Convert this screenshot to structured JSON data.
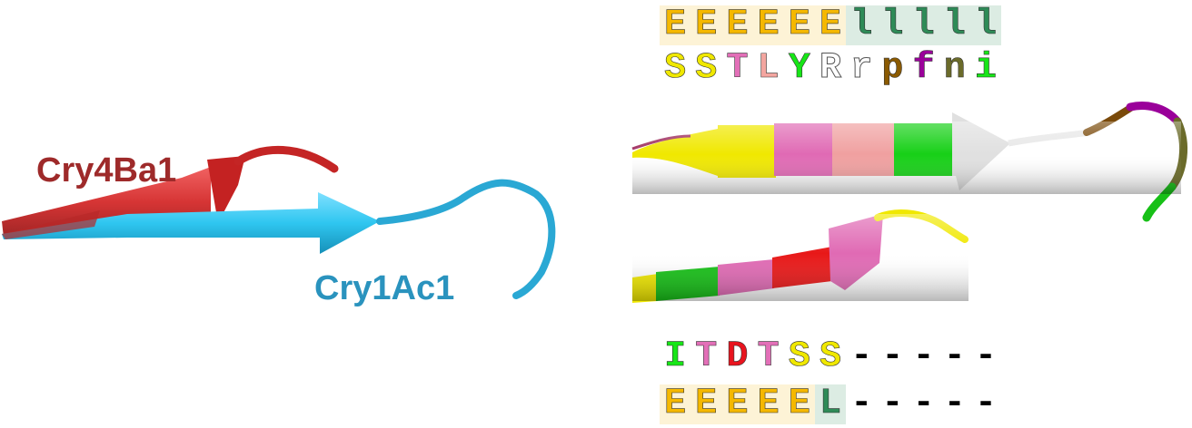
{
  "labels": {
    "cry4ba1": "Cry4Ba1",
    "cry1ac1": "Cry1Ac1"
  },
  "sequences": {
    "top_ss": {
      "chars": [
        "E",
        "E",
        "E",
        "E",
        "E",
        "E",
        "l",
        "l",
        "l",
        "l",
        "l"
      ],
      "colors": [
        "#f5b800",
        "#f5b800",
        "#f5b800",
        "#f5b800",
        "#f5b800",
        "#f5b800",
        "#2e8b57",
        "#2e8b57",
        "#2e8b57",
        "#2e8b57",
        "#2e8b57"
      ],
      "backgrounds": [
        {
          "from": 0,
          "to": 6,
          "color": "#fdf3d6"
        },
        {
          "from": 6,
          "to": 11,
          "color": "#dcece3"
        }
      ]
    },
    "top_aa": {
      "chars": [
        "S",
        "S",
        "T",
        "L",
        "Y",
        "R",
        "r",
        "p",
        "f",
        "n",
        "i"
      ],
      "colors": [
        "#f0e800",
        "#f0e800",
        "#e36fb8",
        "#f4a6a0",
        "#17e617",
        "#ffffff",
        "#ffffff",
        "#8b5a00",
        "#9b009b",
        "#6b6b2a",
        "#17e617"
      ]
    },
    "bottom_aa": {
      "chars": [
        "I",
        "T",
        "D",
        "T",
        "S",
        "S",
        "-",
        "-",
        "-",
        "-",
        "-"
      ],
      "colors": [
        "#17e617",
        "#e36fb8",
        "#e8141e",
        "#e36fb8",
        "#f0e800",
        "#f0e800",
        "#000000",
        "#000000",
        "#000000",
        "#000000",
        "#000000"
      ]
    },
    "bottom_ss": {
      "chars": [
        "E",
        "E",
        "E",
        "E",
        "E",
        "L",
        "-",
        "-",
        "-",
        "-",
        "-"
      ],
      "colors": [
        "#f5b800",
        "#f5b800",
        "#f5b800",
        "#f5b800",
        "#f5b800",
        "#2e8b57",
        "#000000",
        "#000000",
        "#000000",
        "#000000",
        "#000000"
      ],
      "backgrounds": [
        {
          "from": 0,
          "to": 5,
          "color": "#fdf3d6"
        },
        {
          "from": 5,
          "to": 6,
          "color": "#dcece3"
        }
      ]
    }
  },
  "colors": {
    "cry4ba1": "#b52a2a",
    "cry1ac1": "#2a9cc4"
  }
}
